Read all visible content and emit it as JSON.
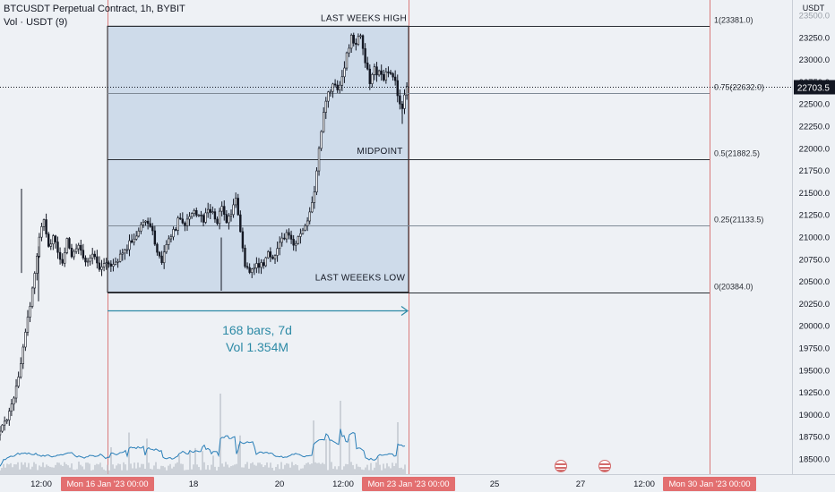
{
  "header": {
    "symbol_line": "BTCUSDT Perpetual Contract, 1h, BYBIT",
    "volume_line": "Vol · USDT (9)"
  },
  "currency": "USDT",
  "colors": {
    "background": "#eef1f5",
    "up": "#131722",
    "down": "#131722",
    "box_fill": "#c3d3e6",
    "box_stroke": "#232323",
    "range_arrow": "#2d8aa6",
    "session_line": "#d97a7a",
    "price_tag_bg": "#131722",
    "volume_bar": "#b6bcc5",
    "volume_ma": "#2a7fb8"
  },
  "chart_data": {
    "type": "candlestick",
    "timeframe": "1h",
    "price_axis": {
      "ticks": [
        18500,
        18750,
        19000,
        19250,
        19500,
        19750,
        20000,
        20250,
        20500,
        20750,
        21000,
        21250,
        21500,
        21750,
        22000,
        22250,
        22500,
        22750,
        23000,
        23250,
        23500
      ],
      "ylim": [
        18380,
        23640
      ],
      "last_price": "22703.5",
      "last_price_value": 22703.5
    },
    "time_axis": {
      "labels": [
        "12:00",
        "Mon 16 Jan '23  00:00",
        "18",
        "20",
        "12:00",
        "Mon 23 Jan '23  00:00",
        "25",
        "27",
        "12:00",
        "Mon 30 Jan '23  00:00"
      ],
      "highlighted": [
        "Mon 16 Jan '23  00:00",
        "Mon 23 Jan '23  00:00",
        "Mon 30 Jan '23  00:00"
      ]
    },
    "ohlc_path": [
      [
        0,
        18820
      ],
      [
        2,
        18900
      ],
      [
        5,
        19150
      ],
      [
        8,
        19400
      ],
      [
        11,
        19900
      ],
      [
        13,
        20250
      ],
      [
        15,
        20600
      ],
      [
        17,
        21000
      ],
      [
        19,
        21200
      ],
      [
        21,
        20900
      ],
      [
        23,
        21000
      ],
      [
        25,
        20850
      ],
      [
        27,
        20700
      ],
      [
        29,
        20950
      ],
      [
        31,
        20800
      ],
      [
        34,
        20900
      ],
      [
        37,
        20750
      ],
      [
        40,
        20800
      ],
      [
        43,
        20650
      ],
      [
        46,
        20750
      ],
      [
        49,
        20700
      ],
      [
        52,
        20800
      ],
      [
        55,
        20900
      ],
      [
        58,
        21000
      ],
      [
        60,
        21100
      ],
      [
        62,
        21200
      ],
      [
        64,
        21150
      ],
      [
        66,
        21050
      ],
      [
        68,
        20800
      ],
      [
        70,
        20750
      ],
      [
        72,
        20900
      ],
      [
        74,
        21000
      ],
      [
        76,
        21100
      ],
      [
        78,
        21250
      ],
      [
        80,
        21150
      ],
      [
        82,
        21200
      ],
      [
        84,
        21300
      ],
      [
        86,
        21250
      ],
      [
        88,
        21200
      ],
      [
        90,
        21300
      ],
      [
        92,
        21250
      ],
      [
        94,
        21200
      ],
      [
        96,
        21350
      ],
      [
        98,
        21150
      ],
      [
        100,
        21300
      ],
      [
        102,
        21400
      ],
      [
        104,
        21050
      ],
      [
        106,
        20700
      ],
      [
        108,
        20600
      ],
      [
        110,
        20700
      ],
      [
        112,
        20650
      ],
      [
        114,
        20700
      ],
      [
        116,
        20800
      ],
      [
        118,
        20750
      ],
      [
        120,
        20900
      ],
      [
        122,
        21000
      ],
      [
        124,
        21050
      ],
      [
        126,
        20950
      ],
      [
        128,
        20950
      ],
      [
        130,
        21050
      ],
      [
        132,
        21150
      ],
      [
        134,
        21300
      ],
      [
        136,
        21500
      ],
      [
        138,
        22000
      ],
      [
        140,
        22400
      ],
      [
        142,
        22600
      ],
      [
        144,
        22700
      ],
      [
        146,
        22650
      ],
      [
        148,
        22800
      ],
      [
        150,
        23100
      ],
      [
        152,
        23250
      ],
      [
        154,
        23200
      ],
      [
        156,
        23300
      ],
      [
        158,
        23000
      ],
      [
        160,
        22750
      ],
      [
        162,
        22900
      ],
      [
        164,
        22850
      ],
      [
        166,
        22750
      ],
      [
        168,
        22900
      ],
      [
        170,
        22850
      ],
      [
        172,
        22600
      ],
      [
        174,
        22450
      ],
      [
        176,
        22703.5
      ]
    ],
    "volume": {
      "name": "Vol · USDT (9)",
      "ma_period": 9
    }
  },
  "drawings": {
    "range_box": {
      "high_label": "LAST WEEKS HIGH",
      "mid_label": "MIDPOINT",
      "low_label": "LAST WEEEKS LOW",
      "high": 23381.0,
      "low": 20384.0
    },
    "fib_levels": [
      {
        "label": "1(23381.0)",
        "value": 23381.0
      },
      {
        "label": "0.75(22632.0)",
        "value": 22632.0
      },
      {
        "label": "0.5(21882.5)",
        "value": 21882.5
      },
      {
        "label": "0.25(21133.5)",
        "value": 21133.5
      },
      {
        "label": "0(20384.0)",
        "value": 20384.0
      }
    ],
    "range_measure": {
      "bars_label": "168 bars, 7d",
      "volume_label": "Vol 1.354M"
    }
  }
}
